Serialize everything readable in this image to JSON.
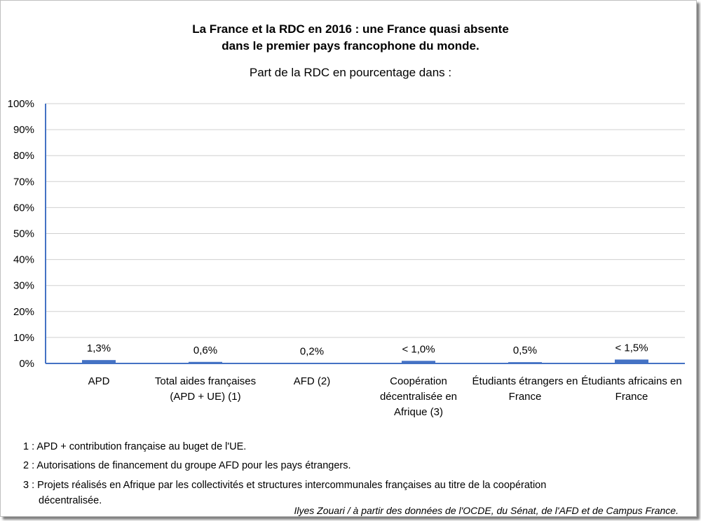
{
  "chart_data": {
    "type": "bar",
    "title_line1": "La France et la RDC en 2016 : une France quasi absente",
    "title_line2": "dans le premier pays francophone du monde.",
    "subtitle": "Part de la RDC en pourcentage dans :",
    "xlabel": "",
    "ylabel": "",
    "ylim": [
      0,
      100
    ],
    "yticks": [
      "0%",
      "10%",
      "20%",
      "30%",
      "40%",
      "50%",
      "60%",
      "70%",
      "80%",
      "90%",
      "100%"
    ],
    "grid": true,
    "bar_color": "#4472c4",
    "categories": [
      "APD",
      "Total aides françaises (APD + UE) (1)",
      "AFD (2)",
      "Coopération décentralisée en Afrique (3)",
      "Étudiants étrangers en France",
      "Étudiants africains en France"
    ],
    "values": [
      1.3,
      0.6,
      0.2,
      1.0,
      0.5,
      1.5
    ],
    "data_labels": [
      "1,3%",
      "0,6%",
      "0,2%",
      "< 1,0%",
      "0,5%",
      "< 1,5%"
    ]
  },
  "notes": [
    "1 : APD + contribution française au buget de l'UE.",
    "2 : Autorisations de financement du groupe AFD pour les pays étrangers.",
    "3 : Projets réalisés en Afrique par les collectivités et structures intercommunales françaises au titre de la coopération",
    "décentralisée."
  ],
  "source": "Ilyes Zouari / à partir des données de l'OCDE, du Sénat, de l'AFD et de Campus France."
}
